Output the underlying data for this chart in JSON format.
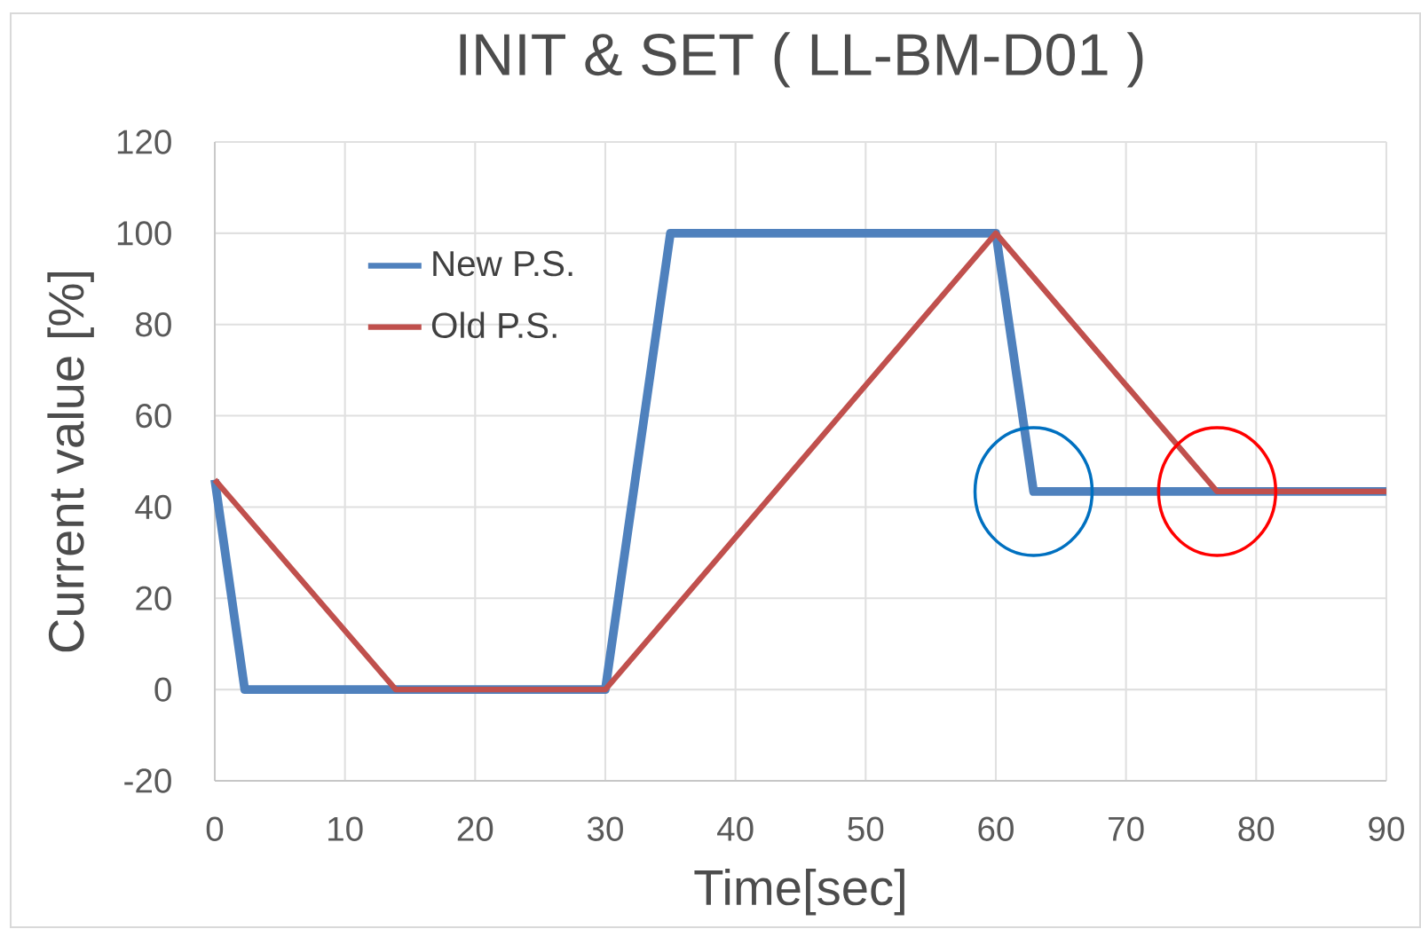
{
  "chart_data": {
    "type": "line",
    "title": "INIT & SET ( LL-BM-D01 )",
    "xlabel": "Time[sec]",
    "ylabel": "Current value [%]",
    "series": [
      {
        "name": "New P.S.",
        "color": "#4f81bd",
        "x": [
          0,
          2.3,
          30,
          35,
          60,
          62.9,
          90
        ],
        "values": [
          46,
          0,
          0,
          100,
          100,
          43.4,
          43.4
        ]
      },
      {
        "name": "Old P.S.",
        "color": "#c0504d",
        "x": [
          0,
          13.9,
          30,
          60,
          77,
          90
        ],
        "values": [
          46,
          0,
          0,
          100,
          43.4,
          43.4
        ]
      }
    ],
    "xlim": [
      0,
      90
    ],
    "xticks": [
      0,
      10,
      20,
      30,
      40,
      50,
      60,
      70,
      80,
      90
    ],
    "ylim": [
      -20,
      120
    ],
    "yticks": [
      -20,
      0,
      20,
      40,
      60,
      80,
      100,
      120
    ],
    "grid": true,
    "legend": "top left",
    "marker": "none",
    "line_style": "solid"
  }
}
